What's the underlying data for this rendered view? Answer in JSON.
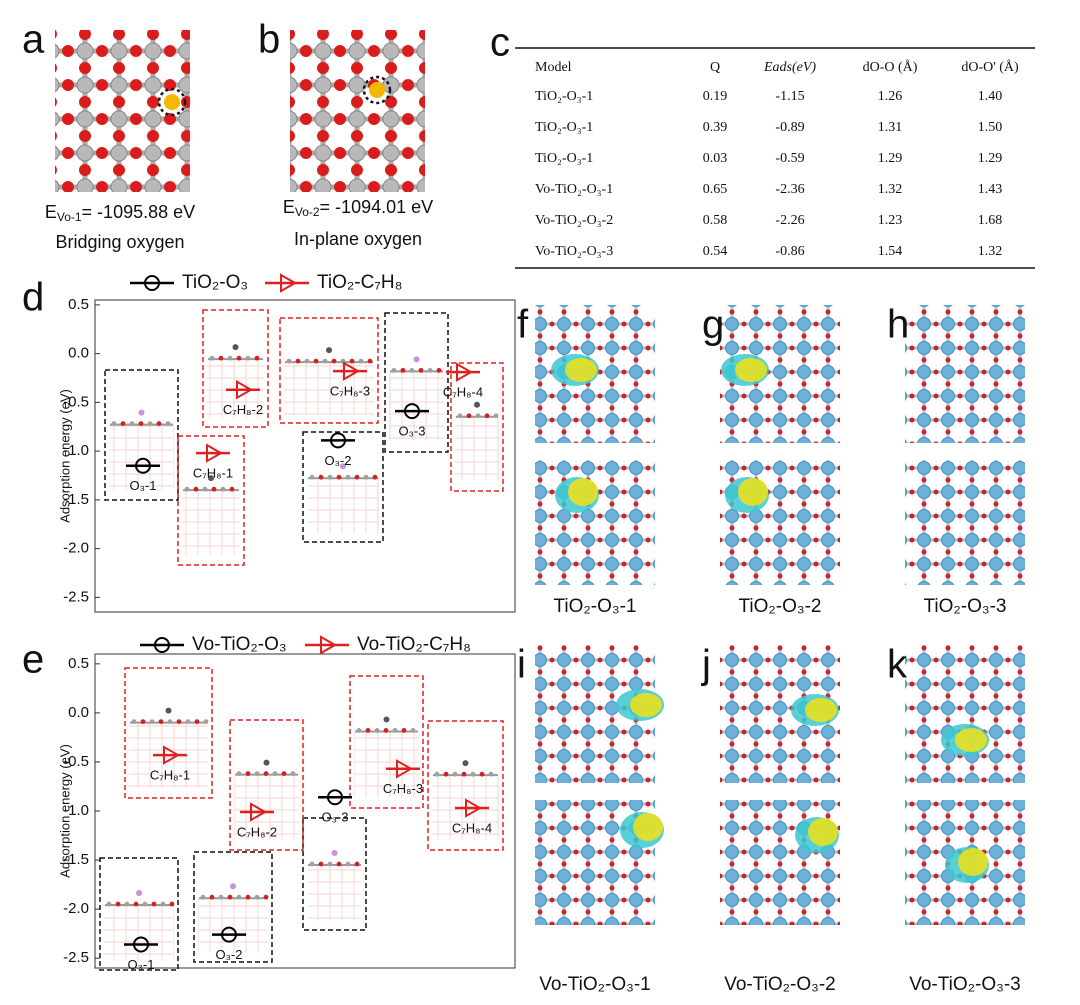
{
  "structures": [
    {
      "letter": "a",
      "energy_symbol": "E",
      "energy_sub": "Vo-1",
      "energy_value": "= -1095.88 eV",
      "site": "Bridging oxygen"
    },
    {
      "letter": "b",
      "energy_symbol": "E",
      "energy_sub": "Vo-2",
      "energy_value": "= -1094.01 eV",
      "site": "In-plane oxygen"
    }
  ],
  "table": {
    "letter": "c",
    "header": [
      "Model",
      "Q",
      "Eads(eV)",
      "dO-O (Å)",
      "dO-O' (Å)"
    ],
    "rows": [
      [
        "TiO₂-O₃-1",
        "0.19",
        "-1.15",
        "1.26",
        "1.40"
      ],
      [
        "TiO₂-O₃-1",
        "0.39",
        "-0.89",
        "1.31",
        "1.50"
      ],
      [
        "TiO₂-O₃-1",
        "0.03",
        "-0.59",
        "1.29",
        "1.29"
      ],
      [
        "Vo-TiO₂-O₃-1",
        "0.65",
        "-2.36",
        "1.32",
        "1.43"
      ],
      [
        "Vo-TiO₂-O₃-2",
        "0.58",
        "-2.26",
        "1.23",
        "1.68"
      ],
      [
        "Vo-TiO₂-O₃-3",
        "0.54",
        "-0.86",
        "1.54",
        "1.32"
      ]
    ]
  },
  "chart_data": [
    {
      "type": "level",
      "letter": "d",
      "ylabel": "Adsorption energy (eV)",
      "ylim": [
        -2.65,
        0.55
      ],
      "yticks": [
        0.5,
        {
          "value": 0,
          "label": "0.0"
        },
        -0.5,
        {
          "value": -1,
          "label": "-1.0"
        },
        -1.5,
        {
          "value": -2,
          "label": "-2.0"
        },
        -2.5
      ],
      "series": [
        {
          "name": "TiO₂-O₃",
          "color": "#000000",
          "marker": "circle",
          "values": [
            -1.15,
            -0.89,
            -0.59
          ],
          "labels": [
            "O₃-1",
            "O₃-2",
            "O₃-3"
          ]
        },
        {
          "name": "TiO₂-C₇H₈",
          "color": "#e02020",
          "marker": "triangle",
          "values": [
            -1.02,
            -0.37,
            -0.18,
            -0.19
          ],
          "labels": [
            "C₇H₈-1",
            "C₇H₈-2",
            "C₇H₈-3",
            "C₇H₈-4"
          ]
        }
      ]
    },
    {
      "type": "level",
      "letter": "e",
      "ylabel": "Adsorption energy (eV)",
      "ylim": [
        -2.6,
        0.6
      ],
      "yticks": [
        0.5,
        {
          "value": 0,
          "label": "0.0"
        },
        -0.5,
        {
          "value": -1,
          "label": "-1.0"
        },
        -1.5,
        {
          "value": -2,
          "label": "-2.0"
        },
        -2.5
      ],
      "series": [
        {
          "name": "Vo-TiO₂-O₃",
          "color": "#000000",
          "marker": "circle",
          "values": [
            -2.36,
            -2.26,
            -0.86
          ],
          "labels": [
            "O₃-1",
            "O₃-2",
            "O₃-3"
          ]
        },
        {
          "name": "Vo-TiO₂-C₇H₈",
          "color": "#e02020",
          "marker": "triangle",
          "values": [
            -0.43,
            -1.01,
            -0.57,
            -0.97
          ],
          "labels": [
            "C₇H₈-1",
            "C₇H₈-2",
            "C₇H₈-3",
            "C₇H₈-4"
          ]
        }
      ]
    }
  ],
  "images": [
    {
      "letter": "f",
      "caption": "TiO₂-O₃-1"
    },
    {
      "letter": "g",
      "caption": "TiO₂-O₃-2"
    },
    {
      "letter": "h",
      "caption": "TiO₂-O₃-3"
    },
    {
      "letter": "i",
      "caption": "Vo-TiO₂-O₃-1"
    },
    {
      "letter": "j",
      "caption": "Vo-TiO₂-O₃-2"
    },
    {
      "letter": "k",
      "caption": "Vo-TiO₂-O₃-3"
    }
  ]
}
